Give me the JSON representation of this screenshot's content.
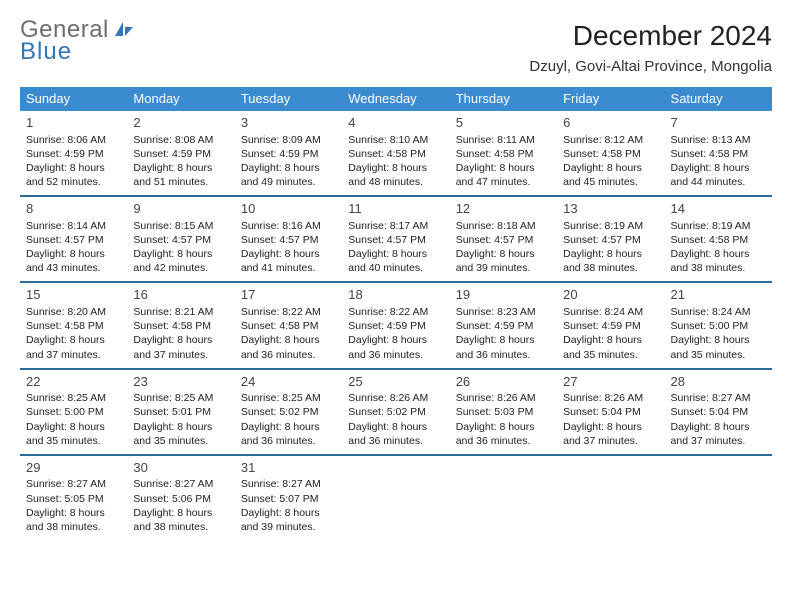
{
  "logo": {
    "word1": "General",
    "word2": "Blue"
  },
  "header": {
    "title": "December 2024",
    "location": "Dzuyl, Govi-Altai Province, Mongolia"
  },
  "colors": {
    "header_bg": "#3b8bd0",
    "rule": "#2d6aa0",
    "logo_grey": "#6e6e6e",
    "logo_blue": "#2f76b5"
  },
  "weekdays": [
    "Sunday",
    "Monday",
    "Tuesday",
    "Wednesday",
    "Thursday",
    "Friday",
    "Saturday"
  ],
  "labels": {
    "sunrise": "Sunrise:",
    "sunset": "Sunset:",
    "daylight": "Daylight:"
  },
  "weeks": [
    [
      {
        "n": "1",
        "sr": "8:06 AM",
        "ss": "4:59 PM",
        "dl": "8 hours and 52 minutes."
      },
      {
        "n": "2",
        "sr": "8:08 AM",
        "ss": "4:59 PM",
        "dl": "8 hours and 51 minutes."
      },
      {
        "n": "3",
        "sr": "8:09 AM",
        "ss": "4:59 PM",
        "dl": "8 hours and 49 minutes."
      },
      {
        "n": "4",
        "sr": "8:10 AM",
        "ss": "4:58 PM",
        "dl": "8 hours and 48 minutes."
      },
      {
        "n": "5",
        "sr": "8:11 AM",
        "ss": "4:58 PM",
        "dl": "8 hours and 47 minutes."
      },
      {
        "n": "6",
        "sr": "8:12 AM",
        "ss": "4:58 PM",
        "dl": "8 hours and 45 minutes."
      },
      {
        "n": "7",
        "sr": "8:13 AM",
        "ss": "4:58 PM",
        "dl": "8 hours and 44 minutes."
      }
    ],
    [
      {
        "n": "8",
        "sr": "8:14 AM",
        "ss": "4:57 PM",
        "dl": "8 hours and 43 minutes."
      },
      {
        "n": "9",
        "sr": "8:15 AM",
        "ss": "4:57 PM",
        "dl": "8 hours and 42 minutes."
      },
      {
        "n": "10",
        "sr": "8:16 AM",
        "ss": "4:57 PM",
        "dl": "8 hours and 41 minutes."
      },
      {
        "n": "11",
        "sr": "8:17 AM",
        "ss": "4:57 PM",
        "dl": "8 hours and 40 minutes."
      },
      {
        "n": "12",
        "sr": "8:18 AM",
        "ss": "4:57 PM",
        "dl": "8 hours and 39 minutes."
      },
      {
        "n": "13",
        "sr": "8:19 AM",
        "ss": "4:57 PM",
        "dl": "8 hours and 38 minutes."
      },
      {
        "n": "14",
        "sr": "8:19 AM",
        "ss": "4:58 PM",
        "dl": "8 hours and 38 minutes."
      }
    ],
    [
      {
        "n": "15",
        "sr": "8:20 AM",
        "ss": "4:58 PM",
        "dl": "8 hours and 37 minutes."
      },
      {
        "n": "16",
        "sr": "8:21 AM",
        "ss": "4:58 PM",
        "dl": "8 hours and 37 minutes."
      },
      {
        "n": "17",
        "sr": "8:22 AM",
        "ss": "4:58 PM",
        "dl": "8 hours and 36 minutes."
      },
      {
        "n": "18",
        "sr": "8:22 AM",
        "ss": "4:59 PM",
        "dl": "8 hours and 36 minutes."
      },
      {
        "n": "19",
        "sr": "8:23 AM",
        "ss": "4:59 PM",
        "dl": "8 hours and 36 minutes."
      },
      {
        "n": "20",
        "sr": "8:24 AM",
        "ss": "4:59 PM",
        "dl": "8 hours and 35 minutes."
      },
      {
        "n": "21",
        "sr": "8:24 AM",
        "ss": "5:00 PM",
        "dl": "8 hours and 35 minutes."
      }
    ],
    [
      {
        "n": "22",
        "sr": "8:25 AM",
        "ss": "5:00 PM",
        "dl": "8 hours and 35 minutes."
      },
      {
        "n": "23",
        "sr": "8:25 AM",
        "ss": "5:01 PM",
        "dl": "8 hours and 35 minutes."
      },
      {
        "n": "24",
        "sr": "8:25 AM",
        "ss": "5:02 PM",
        "dl": "8 hours and 36 minutes."
      },
      {
        "n": "25",
        "sr": "8:26 AM",
        "ss": "5:02 PM",
        "dl": "8 hours and 36 minutes."
      },
      {
        "n": "26",
        "sr": "8:26 AM",
        "ss": "5:03 PM",
        "dl": "8 hours and 36 minutes."
      },
      {
        "n": "27",
        "sr": "8:26 AM",
        "ss": "5:04 PM",
        "dl": "8 hours and 37 minutes."
      },
      {
        "n": "28",
        "sr": "8:27 AM",
        "ss": "5:04 PM",
        "dl": "8 hours and 37 minutes."
      }
    ],
    [
      {
        "n": "29",
        "sr": "8:27 AM",
        "ss": "5:05 PM",
        "dl": "8 hours and 38 minutes."
      },
      {
        "n": "30",
        "sr": "8:27 AM",
        "ss": "5:06 PM",
        "dl": "8 hours and 38 minutes."
      },
      {
        "n": "31",
        "sr": "8:27 AM",
        "ss": "5:07 PM",
        "dl": "8 hours and 39 minutes."
      },
      null,
      null,
      null,
      null
    ]
  ]
}
